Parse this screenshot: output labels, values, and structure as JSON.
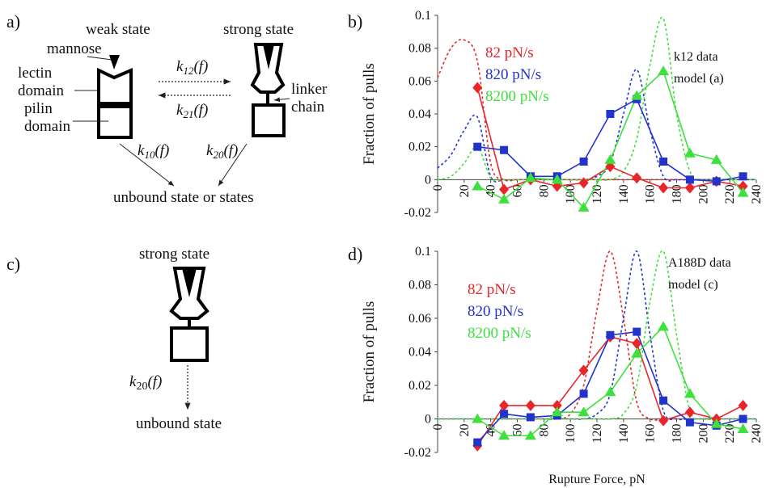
{
  "diagrams": {
    "a": {
      "label": "a)",
      "weak_state": "weak state",
      "mannose": "mannose",
      "lectin_domain": [
        "lectin",
        "domain"
      ],
      "pilin_domain": [
        "pilin",
        "domain"
      ],
      "strong_state": "strong state",
      "linker_chain": [
        "linker",
        "chain"
      ],
      "rates": [
        {
          "k": "k",
          "sub": "12",
          "arg": "(f)"
        },
        {
          "k": "k",
          "sub": "21",
          "arg": "(f)"
        },
        {
          "k": "k",
          "sub": "10",
          "arg": "(f)"
        },
        {
          "k": "k",
          "sub": "20",
          "arg": "(f)"
        }
      ],
      "unbound": "unbound state or states"
    },
    "c": {
      "label": "c)",
      "strong_state": "strong state",
      "rate": {
        "k": "k",
        "sub": "20",
        "arg": "(f)"
      },
      "unbound": "unbound state"
    }
  },
  "chart_data": [
    {
      "type": "line",
      "panel_label": "b)",
      "y_label": "Fraction of pulls",
      "annotation": [
        "k12 data",
        "model (a)"
      ],
      "x": [
        30,
        50,
        70,
        90,
        110,
        130,
        150,
        170,
        190,
        210,
        230
      ],
      "series": [
        {
          "name": "82 pN/s",
          "color": "#e8262a",
          "marker": "diamond",
          "values": [
            0.056,
            -0.006,
            0,
            -0.004,
            -0.002,
            0.008,
            0.001,
            -0.005,
            -0.005,
            -0.001,
            -0.004
          ]
        },
        {
          "name": "820 pN/s",
          "color": "#2233cc",
          "marker": "square",
          "values": [
            0.02,
            0.018,
            0.002,
            0.002,
            0.011,
            0.04,
            0.049,
            0.011,
            0,
            -0.001,
            0.002
          ]
        },
        {
          "name": "8200 pN/s",
          "color": "#3ee03e",
          "marker": "triangle",
          "values": [
            -0.004,
            -0.012,
            0.001,
            0,
            -0.017,
            0.012,
            0.051,
            0.066,
            0.016,
            0.012,
            -0.008
          ]
        }
      ],
      "model_x": [
        0,
        10,
        20,
        30,
        40,
        50,
        60,
        70,
        80,
        90,
        100,
        110,
        120,
        130,
        140,
        150,
        160,
        170,
        180,
        190,
        200,
        210,
        220,
        230,
        240
      ],
      "model_curves": [
        {
          "color": "#e8262a",
          "values": [
            0.062,
            0.08,
            0.085,
            0.072,
            0.01,
            0,
            0,
            0,
            0,
            0,
            0,
            0,
            0,
            0,
            0,
            0,
            0,
            0,
            0,
            0,
            0,
            0,
            0,
            0,
            0
          ]
        },
        {
          "color": "#2233cc",
          "values": [
            0.007,
            0.015,
            0.03,
            0.038,
            0.002,
            0,
            0,
            0,
            0,
            0,
            0,
            0,
            0.002,
            0.01,
            0.04,
            0.067,
            0.03,
            0.002,
            0,
            0,
            0,
            0,
            0,
            0,
            0
          ]
        },
        {
          "color": "#3ee03e",
          "values": [
            0,
            0.002,
            0.01,
            0.02,
            0.001,
            0,
            0,
            0,
            0,
            0,
            0,
            0,
            0,
            0,
            0.005,
            0.025,
            0.07,
            0.098,
            0.04,
            0.005,
            0,
            0,
            0,
            0,
            0
          ]
        }
      ],
      "xlim": [
        0,
        240
      ],
      "ylim": [
        -0.02,
        0.1
      ],
      "xticks": [
        0,
        20,
        40,
        60,
        80,
        100,
        120,
        140,
        160,
        180,
        200,
        220,
        240
      ],
      "yticks": [
        -0.02,
        0,
        0.02,
        0.04,
        0.06,
        0.08,
        0.1
      ]
    },
    {
      "type": "line",
      "panel_label": "d)",
      "y_label": "Fraction of pulls",
      "x_label": "Rupture Force, pN",
      "annotation": [
        "A188D data",
        "model (c)"
      ],
      "x": [
        30,
        50,
        70,
        90,
        110,
        130,
        150,
        170,
        190,
        210,
        230
      ],
      "series": [
        {
          "name": "82 pN/s",
          "color": "#e8262a",
          "marker": "diamond",
          "values": [
            -0.016,
            0.008,
            0.008,
            0.008,
            0.029,
            0.049,
            0.045,
            -0.001,
            0.004,
            0,
            0.008
          ]
        },
        {
          "name": "820 pN/s",
          "color": "#2233cc",
          "marker": "square",
          "values": [
            -0.014,
            0.003,
            0.001,
            0.002,
            0.015,
            0.05,
            0.052,
            0.011,
            -0.002,
            -0.004,
            0
          ]
        },
        {
          "name": "8200 pN/s",
          "color": "#3ee03e",
          "marker": "triangle",
          "values": [
            0,
            -0.01,
            -0.01,
            0.004,
            0.004,
            0.016,
            0.039,
            0.055,
            0.015,
            -0.003,
            -0.006
          ]
        }
      ],
      "model_x": [
        0,
        10,
        20,
        30,
        40,
        50,
        60,
        70,
        80,
        90,
        100,
        110,
        120,
        130,
        140,
        150,
        160,
        170,
        180,
        190,
        200,
        210,
        220,
        230,
        240
      ],
      "model_curves": [
        {
          "color": "#e8262a",
          "values": [
            0,
            0,
            0,
            0,
            0,
            0,
            0,
            0,
            0,
            0,
            0.003,
            0.02,
            0.065,
            0.1,
            0.06,
            0.01,
            0,
            0,
            0,
            0,
            0,
            0,
            0,
            0,
            0
          ]
        },
        {
          "color": "#2233cc",
          "values": [
            0,
            0,
            0,
            0,
            0,
            0,
            0,
            0,
            0,
            0,
            0,
            0,
            0.003,
            0.015,
            0.06,
            0.1,
            0.05,
            0.005,
            0,
            0,
            0,
            0,
            0,
            0,
            0
          ]
        },
        {
          "color": "#3ee03e",
          "values": [
            0,
            0,
            0,
            0,
            0,
            0,
            0,
            0,
            0,
            0,
            0,
            0,
            0,
            0,
            0.003,
            0.02,
            0.07,
            0.1,
            0.05,
            0.005,
            0,
            0,
            0,
            0,
            0
          ]
        }
      ],
      "xlim": [
        0,
        240
      ],
      "ylim": [
        -0.02,
        0.1
      ],
      "xticks": [
        0,
        20,
        40,
        60,
        80,
        100,
        120,
        140,
        160,
        180,
        200,
        220,
        240
      ],
      "yticks": [
        -0.02,
        0,
        0.02,
        0.04,
        0.06,
        0.08,
        0.1
      ]
    }
  ]
}
